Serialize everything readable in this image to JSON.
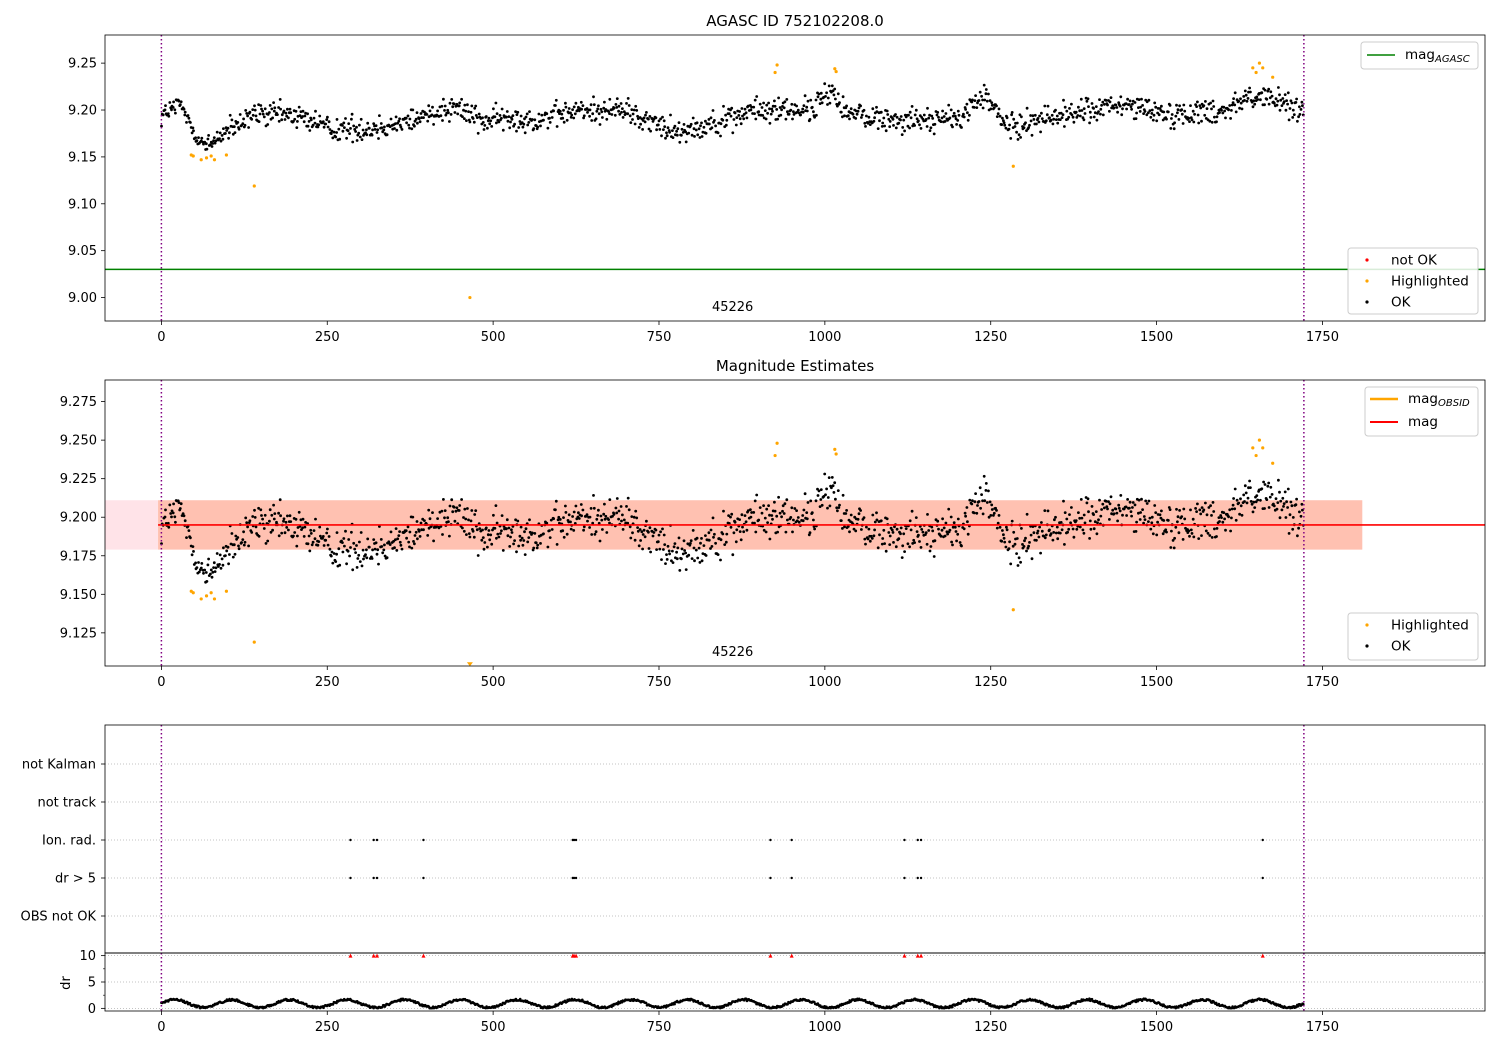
{
  "chart_data": [
    {
      "type": "scatter",
      "title": "AGASC ID 752102208.0",
      "annotation": "45226",
      "xlim": [
        -85,
        1995
      ],
      "ylim": [
        8.975,
        9.28
      ],
      "xticks": [
        0,
        250,
        500,
        750,
        1000,
        1250,
        1500,
        1750
      ],
      "yticks": [
        9.0,
        9.05,
        9.1,
        9.15,
        9.2,
        9.25
      ],
      "ytick_labels": [
        "9.00",
        "9.05",
        "9.10",
        "9.15",
        "9.20",
        "9.25"
      ],
      "vlines": [
        0,
        1722
      ],
      "hlines": [
        {
          "name": "mag",
          "subscript": "AGASC",
          "y": 9.03,
          "color": "#008000"
        }
      ],
      "legend_lines": [
        {
          "name": "mag",
          "subscript": "AGASC",
          "color": "#008000"
        }
      ],
      "legend_points": [
        {
          "name": "not OK",
          "color": "#ff0000"
        },
        {
          "name": "Highlighted",
          "color": "#ffa500"
        },
        {
          "name": "OK",
          "color": "#000000"
        }
      ],
      "highlighted_points": [
        [
          45,
          9.152
        ],
        [
          48,
          9.151
        ],
        [
          60,
          9.147
        ],
        [
          68,
          9.149
        ],
        [
          75,
          9.151
        ],
        [
          80,
          9.147
        ],
        [
          98,
          9.152
        ],
        [
          140,
          9.119
        ],
        [
          465,
          9.0
        ],
        [
          925,
          9.24
        ],
        [
          928,
          9.248
        ],
        [
          1015,
          9.244
        ],
        [
          1017,
          9.241
        ],
        [
          1284,
          9.14
        ],
        [
          1645,
          9.245
        ],
        [
          1650,
          9.24
        ],
        [
          1655,
          9.25
        ],
        [
          1660,
          9.245
        ],
        [
          1675,
          9.235
        ]
      ],
      "series": [
        {
          "name": "OK",
          "color": "#000000",
          "x_range": [
            0,
            1722
          ],
          "trend": [
            [
              0,
              9.195
            ],
            [
              30,
              9.205
            ],
            [
              50,
              9.175
            ],
            [
              70,
              9.16
            ],
            [
              90,
              9.175
            ],
            [
              110,
              9.18
            ],
            [
              140,
              9.195
            ],
            [
              200,
              9.195
            ],
            [
              260,
              9.18
            ],
            [
              320,
              9.18
            ],
            [
              380,
              9.19
            ],
            [
              440,
              9.205
            ],
            [
              480,
              9.19
            ],
            [
              560,
              9.19
            ],
            [
              640,
              9.2
            ],
            [
              700,
              9.2
            ],
            [
              760,
              9.18
            ],
            [
              800,
              9.18
            ],
            [
              900,
              9.2
            ],
            [
              980,
              9.2
            ],
            [
              1010,
              9.22
            ],
            [
              1040,
              9.195
            ],
            [
              1100,
              9.19
            ],
            [
              1200,
              9.19
            ],
            [
              1240,
              9.215
            ],
            [
              1280,
              9.18
            ],
            [
              1320,
              9.19
            ],
            [
              1400,
              9.2
            ],
            [
              1460,
              9.205
            ],
            [
              1520,
              9.195
            ],
            [
              1600,
              9.2
            ],
            [
              1640,
              9.215
            ],
            [
              1680,
              9.21
            ],
            [
              1722,
              9.2
            ]
          ],
          "spread": 0.012
        }
      ]
    },
    {
      "type": "scatter",
      "title": "Magnitude Estimates",
      "annotation": "45226",
      "xlim": [
        -85,
        1995
      ],
      "ylim": [
        9.1035,
        9.289
      ],
      "xticks": [
        0,
        250,
        500,
        750,
        1000,
        1250,
        1500,
        1750
      ],
      "yticks": [
        9.125,
        9.15,
        9.175,
        9.2,
        9.225,
        9.25,
        9.275
      ],
      "ytick_labels": [
        "9.125",
        "9.150",
        "9.175",
        "9.200",
        "9.225",
        "9.250",
        "9.275"
      ],
      "vlines": [
        0,
        1722
      ],
      "hlines": [
        {
          "name": "mag",
          "y": 9.195,
          "color": "#ff0000"
        }
      ],
      "bands": [
        {
          "x": [
            -85,
            1810
          ],
          "y": [
            9.179,
            9.211
          ],
          "color": "#ffc0cb"
        },
        {
          "x": [
            -5,
            1810
          ],
          "y": [
            9.179,
            9.211
          ],
          "color": "#ffa07a"
        }
      ],
      "legend_lines": [
        {
          "name": "mag",
          "subscript": "OBSID",
          "color": "#ffa500"
        },
        {
          "name": "mag",
          "color": "#ff0000"
        }
      ],
      "legend_points": [
        {
          "name": "Highlighted",
          "color": "#ffa500"
        },
        {
          "name": "OK",
          "color": "#000000"
        }
      ],
      "highlighted_points": [
        [
          45,
          9.152
        ],
        [
          48,
          9.151
        ],
        [
          60,
          9.147
        ],
        [
          68,
          9.149
        ],
        [
          75,
          9.151
        ],
        [
          80,
          9.147
        ],
        [
          98,
          9.152
        ],
        [
          140,
          9.119
        ],
        [
          925,
          9.24
        ],
        [
          928,
          9.248
        ],
        [
          1015,
          9.244
        ],
        [
          1017,
          9.241
        ],
        [
          1284,
          9.14
        ],
        [
          1645,
          9.245
        ],
        [
          1650,
          9.24
        ],
        [
          1655,
          9.25
        ],
        [
          1660,
          9.245
        ],
        [
          1675,
          9.235
        ]
      ],
      "offscale_markers": [
        [
          465,
          9.104
        ]
      ]
    },
    {
      "type": "scatter",
      "title": "",
      "xlim": [
        -85,
        1995
      ],
      "xticks": [
        0,
        250,
        500,
        750,
        1000,
        1250,
        1500,
        1750
      ],
      "vlines": [
        0,
        1722
      ],
      "categories": [
        "not Kalman",
        "not track",
        "Ion. rad.",
        "dr > 5",
        "OBS not OK"
      ],
      "flag_events": {
        "Ion. rad.": [
          285,
          320,
          325,
          395,
          620,
          622,
          625,
          918,
          950,
          1120,
          1140,
          1145,
          1660
        ],
        "dr > 5": [
          285,
          320,
          325,
          395,
          620,
          622,
          625,
          918,
          950,
          1120,
          1140,
          1145,
          1660
        ]
      }
    },
    {
      "type": "line",
      "title": "",
      "ylabel": "dr",
      "xlim": [
        -85,
        1995
      ],
      "ylim": [
        -0.5,
        10.5
      ],
      "xticks": [
        0,
        250,
        500,
        750,
        1000,
        1250,
        1500,
        1750
      ],
      "yticks": [
        0,
        5,
        10
      ],
      "vlines": [
        0,
        1722
      ],
      "clipped_markers_y": 10,
      "clipped_markers_x": [
        285,
        320,
        325,
        395,
        620,
        622,
        625,
        918,
        950,
        1120,
        1140,
        1145,
        1660
      ],
      "dr_level": [
        0,
        2
      ]
    }
  ]
}
